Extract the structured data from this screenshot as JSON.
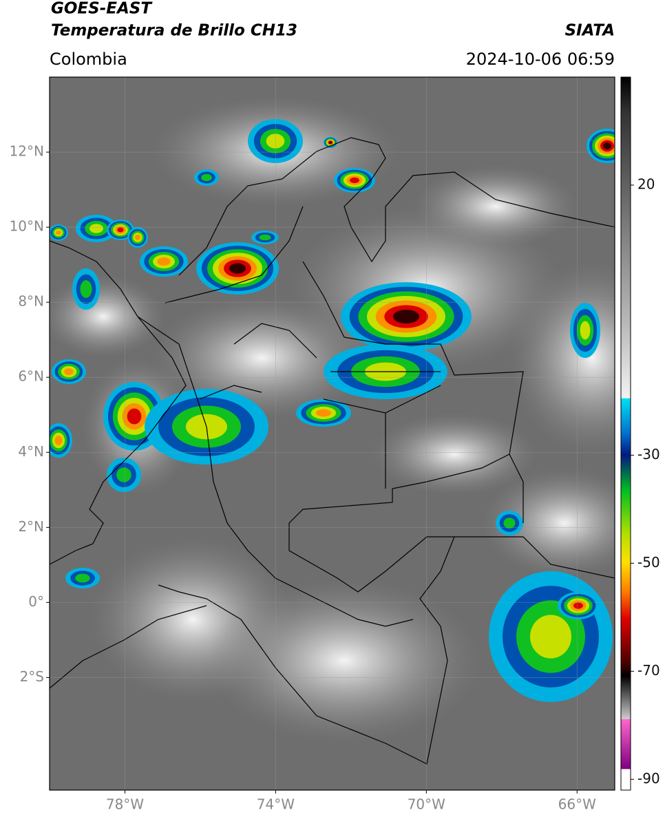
{
  "header": {
    "title": "GOES-EAST",
    "subtitle": "Temperatura de Brillo CH13",
    "source": "SIATA",
    "region": "Colombia",
    "datetime": "2024-10-06 06:59"
  },
  "map": {
    "xlim": [
      -80,
      -65
    ],
    "ylim": [
      -5,
      14
    ],
    "xticks": [
      {
        "value": -78,
        "label": "78°W"
      },
      {
        "value": -74,
        "label": "74°W"
      },
      {
        "value": -70,
        "label": "70°W"
      },
      {
        "value": -66,
        "label": "66°W"
      }
    ],
    "yticks": [
      {
        "value": 12,
        "label": "12°N"
      },
      {
        "value": 10,
        "label": "10°N"
      },
      {
        "value": 8,
        "label": "8°N"
      },
      {
        "value": 6,
        "label": "6°N"
      },
      {
        "value": 4,
        "label": "4°N"
      },
      {
        "value": 2,
        "label": "2°N"
      },
      {
        "value": 0,
        "label": "0°"
      },
      {
        "value": -2,
        "label": "2°S"
      }
    ],
    "grid": true
  },
  "colorbar": {
    "clim": [
      -92,
      40
    ],
    "ticks": [
      20,
      -30,
      -50,
      -70,
      -90
    ]
  }
}
